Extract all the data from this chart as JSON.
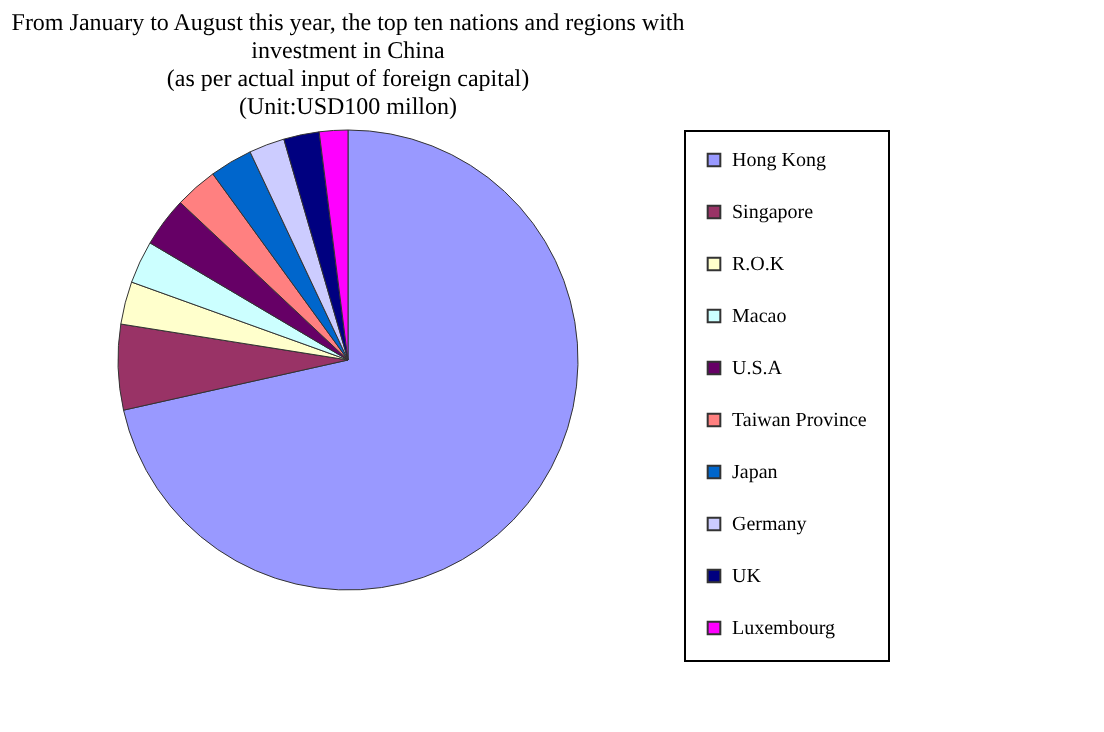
{
  "chart_data": {
    "type": "pie",
    "title": "From January to August this year, the top ten nations and regions with\ninvestment in China\n(as per actual input of foreign capital)\n(Unit:USD100 millon)",
    "categories": [
      "Hong Kong",
      "Singapore",
      "R.O.K",
      "Macao",
      "U.S.A",
      "Taiwan Province",
      "Japan",
      "Germany",
      "UK",
      "Luxembourg"
    ],
    "values": [
      71.5,
      6,
      3,
      3,
      3.5,
      3,
      3,
      2.5,
      2.5,
      2
    ],
    "colors": [
      "#9999ff",
      "#993366",
      "#ffffcc",
      "#ccffff",
      "#660066",
      "#ff8080",
      "#0066cc",
      "#ccccff",
      "#000080",
      "#ff00ff"
    ],
    "legend": "right"
  }
}
